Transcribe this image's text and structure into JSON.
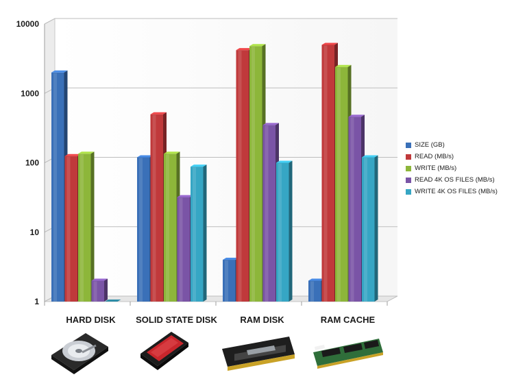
{
  "chart_data": {
    "type": "bar",
    "scale": "log",
    "ylim": [
      1,
      10000
    ],
    "yticks": [
      "10000",
      "1000",
      "100",
      "10",
      "1"
    ],
    "grid": true,
    "legend_position": "right",
    "categories": [
      "HARD DISK",
      "SOLID STATE DISK",
      "RAM DISK",
      "RAM CACHE"
    ],
    "series": [
      {
        "name": "SIZE (GB)",
        "color": "#3A70B8",
        "values": [
          2000,
          120,
          4,
          2
        ]
      },
      {
        "name": "READ (MB/s)",
        "color": "#C0393B",
        "values": [
          125,
          500,
          4200,
          5000
        ]
      },
      {
        "name": "WRITE (MB/s)",
        "color": "#8DB63A",
        "values": [
          135,
          135,
          4800,
          2400
        ]
      },
      {
        "name": "READ 4K OS FILES (MB/s)",
        "color": "#7A54A6",
        "values": [
          2,
          32,
          350,
          460
        ]
      },
      {
        "name": "WRITE 4K OS FILES (MB/s)",
        "color": "#36A6C4",
        "values": [
          1,
          88,
          100,
          120
        ]
      }
    ],
    "images": [
      "hard-disk-drive-photo",
      "ssd-photo",
      "ram-module-heatsink-photo",
      "ram-module-photo"
    ]
  }
}
